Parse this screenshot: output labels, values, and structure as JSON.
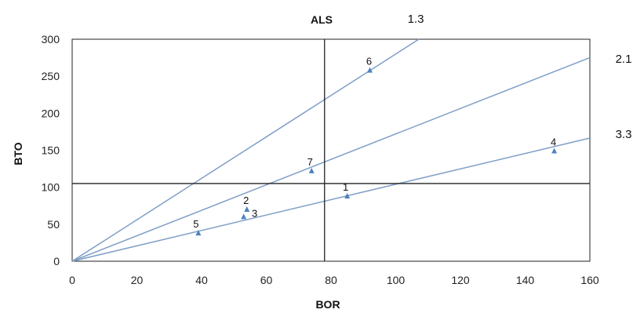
{
  "chart_data": {
    "type": "scatter",
    "title": "ALS",
    "xlabel": "BOR",
    "ylabel": "BTO",
    "xlim": [
      0,
      160
    ],
    "ylim": [
      0,
      300
    ],
    "x_ticks": [
      "0",
      "20",
      "40",
      "60",
      "80",
      "100",
      "120",
      "140",
      "160"
    ],
    "y_ticks": [
      "0",
      "50",
      "100",
      "150",
      "200",
      "250",
      "300"
    ],
    "grid": false,
    "reference_lines": {
      "x": 78,
      "y": 105
    },
    "ratio_lines": [
      {
        "label": "1.3",
        "slope": 2.8
      },
      {
        "label": "2.1",
        "slope": 1.72
      },
      {
        "label": "3.3",
        "slope": 1.04
      }
    ],
    "points": [
      {
        "label": "1",
        "x": 85,
        "y": 88
      },
      {
        "label": "2",
        "x": 54,
        "y": 70
      },
      {
        "label": "3",
        "x": 53,
        "y": 60
      },
      {
        "label": "4",
        "x": 149,
        "y": 149
      },
      {
        "label": "5",
        "x": 39,
        "y": 38
      },
      {
        "label": "6",
        "x": 92,
        "y": 258
      },
      {
        "label": "7",
        "x": 74,
        "y": 122
      }
    ],
    "colors": {
      "line": "#7f9fc7",
      "marker": "#4f81bd",
      "frame": "#222222"
    }
  }
}
